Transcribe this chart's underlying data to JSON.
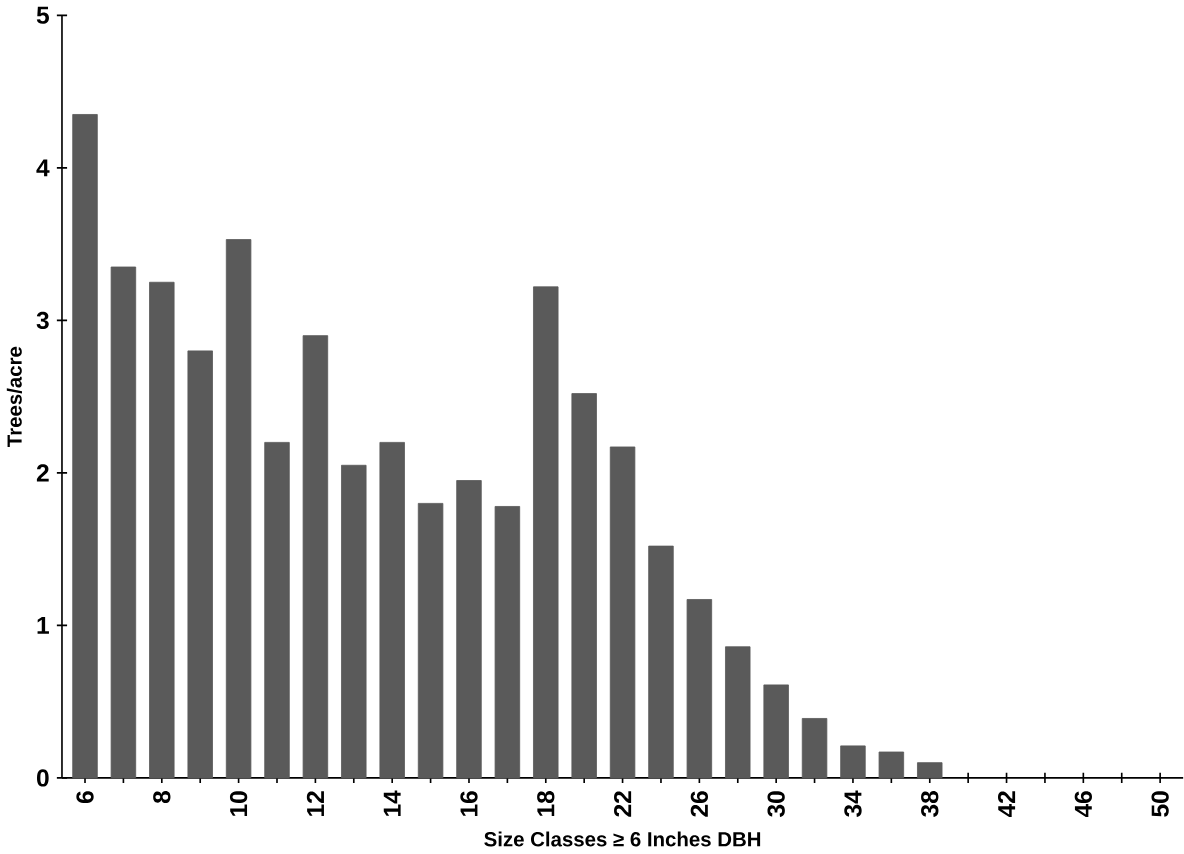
{
  "chart_data": {
    "type": "bar",
    "xlabel": "Size Classes ≥ 6 Inches DBH",
    "ylabel": "Trees/acre",
    "categories": [
      "6",
      null,
      "8",
      null,
      "10",
      null,
      "12",
      null,
      "14",
      null,
      "16",
      null,
      "18",
      null,
      "22",
      null,
      "26",
      null,
      "30",
      null,
      "34",
      null,
      "38",
      null,
      "42",
      null,
      "46",
      null,
      "50"
    ],
    "values": [
      4.35,
      3.35,
      3.25,
      2.8,
      3.53,
      2.2,
      2.9,
      2.05,
      2.2,
      1.8,
      1.95,
      1.78,
      3.22,
      2.52,
      2.17,
      1.52,
      1.17,
      0.86,
      0.61,
      0.39,
      0.21,
      0.17,
      0.1,
      null,
      null,
      null,
      null,
      null,
      null
    ],
    "color": "#5a5a5a",
    "ylim": [
      0,
      5
    ],
    "yticks": [
      0,
      1,
      2,
      3,
      4,
      5
    ],
    "grid": false
  }
}
